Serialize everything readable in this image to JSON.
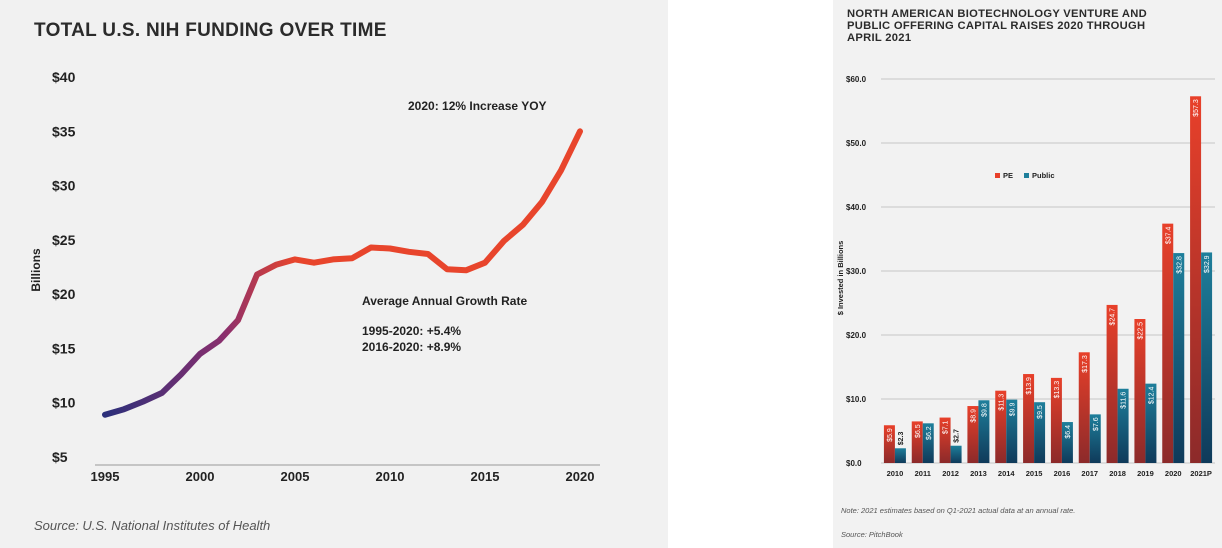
{
  "chart_data": [
    {
      "type": "line",
      "title": "TOTAL U.S. NIH FUNDING OVER TIME",
      "ylabel": "Billions",
      "xlabel": "",
      "x": [
        1995,
        1996,
        1997,
        1998,
        1999,
        2000,
        2001,
        2002,
        2003,
        2004,
        2005,
        2006,
        2007,
        2008,
        2009,
        2010,
        2011,
        2012,
        2013,
        2014,
        2015,
        2016,
        2017,
        2018,
        2019,
        2020
      ],
      "values": [
        8.9,
        9.4,
        10.1,
        10.9,
        12.6,
        14.5,
        15.7,
        17.6,
        21.8,
        22.7,
        23.2,
        22.9,
        23.2,
        23.3,
        24.3,
        24.2,
        23.9,
        23.7,
        22.3,
        22.2,
        22.9,
        24.9,
        26.4,
        28.5,
        31.4,
        35.0
      ],
      "ylim": [
        5,
        40
      ],
      "xlim": [
        1995,
        2020
      ],
      "y_ticks": [
        "$5",
        "$10",
        "$15",
        "$20",
        "$25",
        "$30",
        "$35",
        "$40"
      ],
      "x_ticks": [
        "1995",
        "2000",
        "2005",
        "2010",
        "2015",
        "2020"
      ],
      "annotations": {
        "increase": "2020: 12% Increase YOY",
        "growth_title": "Average Annual Growth Rate",
        "growth_line1": "1995-2020:  +5.4%",
        "growth_line2": "2016-2020:  +8.9%"
      },
      "source": "Source: U.S. National Institutes of Health",
      "gradient_colors": [
        "#2b2f7a",
        "#8a2f6e",
        "#e8452c"
      ]
    },
    {
      "type": "bar",
      "title": "NORTH AMERICAN BIOTECHNOLOGY VENTURE AND PUBLIC OFFERING CAPITAL RAISES 2020 THROUGH APRIL 2021",
      "ylabel": "$ Invested in Billions",
      "categories": [
        "2010",
        "2011",
        "2012",
        "2013",
        "2014",
        "2015",
        "2016",
        "2017",
        "2018",
        "2019",
        "2020",
        "2021P"
      ],
      "series": [
        {
          "name": "PE",
          "values": [
            5.9,
            6.5,
            7.1,
            8.9,
            11.3,
            13.9,
            13.3,
            17.3,
            24.7,
            22.5,
            37.4,
            57.3
          ],
          "labels": [
            "$5.9",
            "$6.5",
            "$7.1",
            "$8.9",
            "$11.3",
            "$13.9",
            "$13.3",
            "$17.3",
            "$24.7",
            "$22.5",
            "$37.4",
            "$57.3"
          ]
        },
        {
          "name": "Public",
          "values": [
            2.3,
            6.2,
            2.7,
            9.8,
            9.9,
            9.5,
            6.4,
            7.6,
            11.6,
            12.4,
            32.8,
            32.9
          ],
          "labels": [
            "$2.3",
            "$6.2",
            "$2.7",
            "$9.8",
            "$9.9",
            "$9.5",
            "$6.4",
            "$7.6",
            "$11.6",
            "$12.4",
            "$32.8",
            "$32.9"
          ]
        }
      ],
      "ylim": [
        0,
        60
      ],
      "y_ticks": [
        "$0.0",
        "$10.0",
        "$20.0",
        "$30.0",
        "$40.0",
        "$50.0",
        "$60.0"
      ],
      "legend": "top-center",
      "colors": {
        "pe": "#e8402a",
        "pe_dark": "#8c2a2a",
        "public": "#1e7f9b",
        "public_dark": "#0f3a5a"
      },
      "note": "Note: 2021 estimates based on Q1-2021 actual data at an annual rate.",
      "source": "Source: PitchBook"
    }
  ]
}
